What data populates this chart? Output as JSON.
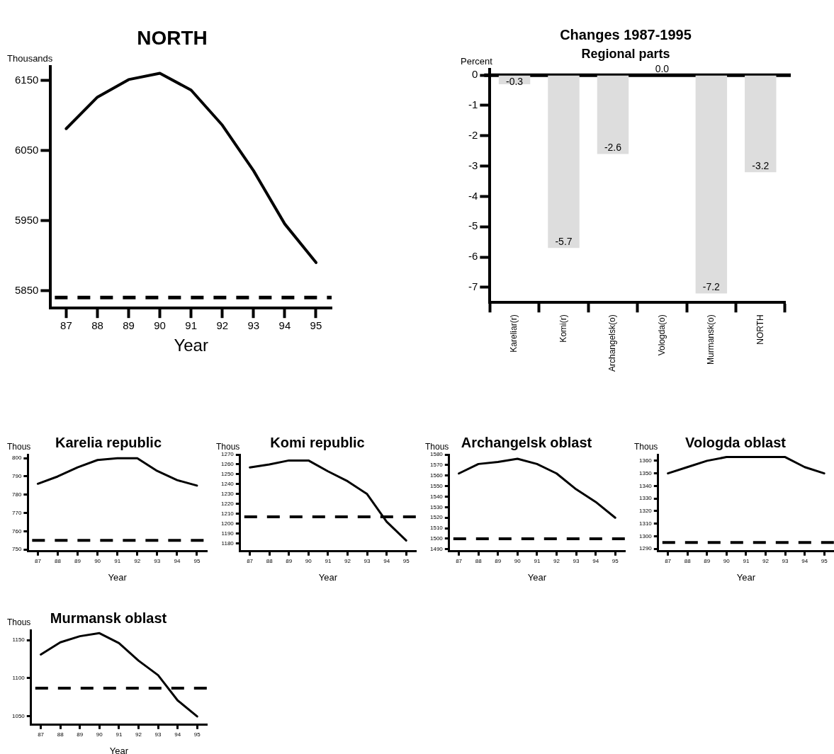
{
  "chart_data": [
    {
      "type": "line",
      "title": "NORTH",
      "xlabel": "Year",
      "ylabel": "Thousands",
      "categories": [
        "87",
        "88",
        "89",
        "90",
        "91",
        "92",
        "93",
        "94",
        "95"
      ],
      "values": [
        6081,
        6126,
        6151,
        6160,
        6136,
        6086,
        6021,
        5945,
        5890
      ],
      "color": "#000000",
      "ylim": [
        5825,
        6170
      ],
      "yticks": [
        5850,
        5950,
        6050,
        6150
      ],
      "ref_lines": [
        {
          "axis": "y",
          "value": 5840,
          "line_style": "dashed"
        }
      ],
      "grid": false,
      "legend": false,
      "marker": "none",
      "line_style": "solid"
    },
    {
      "type": "bar",
      "title": "Changes 1987-1995",
      "subtitle": "Regional parts",
      "ylabel": "Percent",
      "categories": [
        "Kareliar(r)",
        "Komi(r)",
        "Archangelsk(o)",
        "Vologda(o)",
        "Murmansk(o)",
        "NORTH"
      ],
      "values": [
        -0.3,
        -5.7,
        -2.6,
        0.0,
        -7.2,
        -3.2
      ],
      "value_labels": [
        "-0.3",
        "-5.7",
        "-2.6",
        "0.0",
        "-7.2",
        "-3.2"
      ],
      "color": "#dddddd",
      "ylim": [
        -7.5,
        0.2
      ],
      "yticks": [
        0,
        -1,
        -2,
        -3,
        -4,
        -5,
        -6,
        -7
      ],
      "ref_lines": [
        {
          "axis": "y",
          "value": 0,
          "line_style": "solid"
        }
      ],
      "grid": false,
      "legend": false
    },
    {
      "type": "line",
      "title": "Karelia republic",
      "xlabel": "Year",
      "ylabel": "Thous",
      "categories": [
        "87",
        "88",
        "89",
        "90",
        "91",
        "92",
        "93",
        "94",
        "95"
      ],
      "values": [
        786,
        790,
        795,
        799,
        800,
        800,
        793,
        788,
        785
      ],
      "color": "#000000",
      "ylim": [
        749,
        802
      ],
      "yticks": [
        750,
        760,
        770,
        780,
        790,
        800
      ],
      "ref_lines": [
        {
          "axis": "y",
          "value": 755,
          "line_style": "dashed"
        }
      ],
      "grid": false,
      "legend": false,
      "marker": "none",
      "line_style": "solid"
    },
    {
      "type": "line",
      "title": "Komi republic",
      "xlabel": "Year",
      "ylabel": "Thous",
      "categories": [
        "87",
        "88",
        "89",
        "90",
        "91",
        "92",
        "93",
        "94",
        "95"
      ],
      "values": [
        1257,
        1260,
        1264,
        1264,
        1253,
        1243,
        1230,
        1202,
        1183
      ],
      "color": "#000000",
      "ylim": [
        1172,
        1270
      ],
      "yticks": [
        1180,
        1190,
        1200,
        1210,
        1220,
        1230,
        1240,
        1250,
        1260,
        1270
      ],
      "ref_lines": [
        {
          "axis": "y",
          "value": 1207,
          "line_style": "dashed"
        }
      ],
      "grid": false,
      "legend": false,
      "marker": "none",
      "line_style": "solid"
    },
    {
      "type": "line",
      "title": "Archangelsk oblast",
      "xlabel": "Year",
      "ylabel": "Thous",
      "categories": [
        "87",
        "88",
        "89",
        "90",
        "91",
        "92",
        "93",
        "94",
        "95"
      ],
      "values": [
        1562,
        1571,
        1573,
        1576,
        1571,
        1562,
        1547,
        1535,
        1520
      ],
      "color": "#000000",
      "ylim": [
        1488,
        1580
      ],
      "yticks": [
        1490,
        1500,
        1510,
        1520,
        1530,
        1540,
        1550,
        1560,
        1570,
        1580
      ],
      "ref_lines": [
        {
          "axis": "y",
          "value": 1500,
          "line_style": "dashed"
        }
      ],
      "grid": false,
      "legend": false,
      "marker": "none",
      "line_style": "solid"
    },
    {
      "type": "line",
      "title": "Vologda oblast",
      "xlabel": "Year",
      "ylabel": "Thous",
      "categories": [
        "87",
        "88",
        "89",
        "90",
        "91",
        "92",
        "93",
        "94",
        "95"
      ],
      "values": [
        1350,
        1355,
        1360,
        1363,
        1363,
        1363,
        1363,
        1355,
        1350
      ],
      "color": "#000000",
      "ylim": [
        1288,
        1365
      ],
      "yticks": [
        1290,
        1300,
        1310,
        1320,
        1330,
        1340,
        1350,
        1360
      ],
      "ref_lines": [
        {
          "axis": "y",
          "value": 1295,
          "line_style": "dashed"
        }
      ],
      "grid": false,
      "legend": false,
      "marker": "none",
      "line_style": "solid"
    },
    {
      "type": "line",
      "title": "Murmansk oblast",
      "xlabel": "Year",
      "ylabel": "Thous",
      "categories": [
        "87",
        "88",
        "89",
        "90",
        "91",
        "92",
        "93",
        "94",
        "95"
      ],
      "values": [
        1131,
        1147,
        1155,
        1159,
        1146,
        1123,
        1104,
        1071,
        1050
      ],
      "color": "#000000",
      "ylim": [
        1039,
        1163
      ],
      "yticks": [
        1050,
        1100,
        1150
      ],
      "ref_lines": [
        {
          "axis": "y",
          "value": 1087,
          "line_style": "dashed"
        }
      ],
      "grid": false,
      "legend": false,
      "marker": "none",
      "line_style": "solid"
    }
  ]
}
